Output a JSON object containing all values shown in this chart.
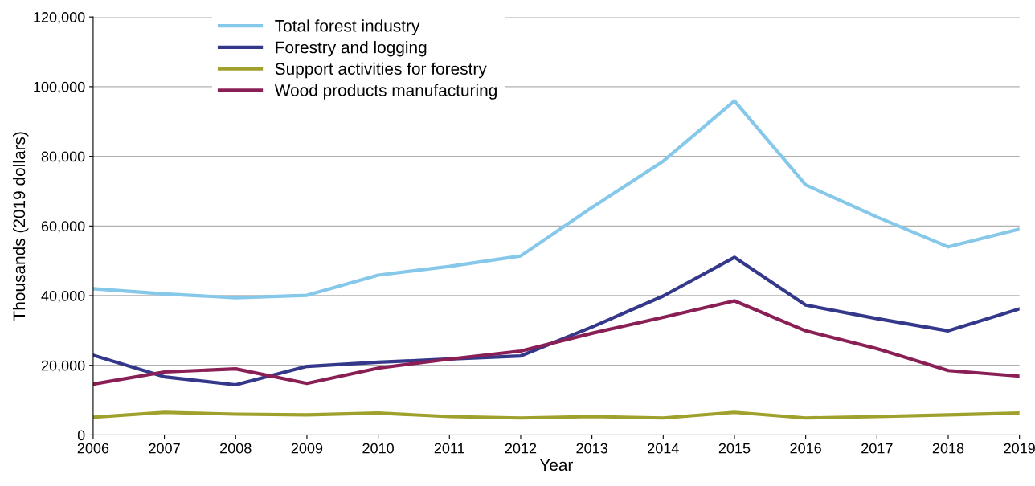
{
  "chart_data": {
    "type": "line",
    "xlabel": "Year",
    "ylabel": "Thousands (2019 dollars)",
    "x": [
      2006,
      2007,
      2008,
      2009,
      2010,
      2011,
      2012,
      2013,
      2014,
      2015,
      2016,
      2017,
      2018,
      2019
    ],
    "xlim": [
      2006,
      2019
    ],
    "xticks": [
      2006,
      2007,
      2008,
      2009,
      2010,
      2011,
      2012,
      2013,
      2014,
      2015,
      2016,
      2017,
      2018,
      2019
    ],
    "ylim": [
      0,
      120000
    ],
    "yticks": [
      {
        "value": 0,
        "label": "0"
      },
      {
        "value": 20000,
        "label": "20,000"
      },
      {
        "value": 40000,
        "label": "40,000"
      },
      {
        "value": 60000,
        "label": "60,000"
      },
      {
        "value": 80000,
        "label": "80,000"
      },
      {
        "value": 100000,
        "label": "100,000"
      },
      {
        "value": 120000,
        "label": "120,000"
      }
    ],
    "grid": "y",
    "legend": "top left",
    "marker": "none",
    "line_style": "solid",
    "series": [
      {
        "name": "Total forest industry",
        "color": "#86c8ea",
        "values": [
          42000,
          40500,
          39400,
          40100,
          45900,
          48400,
          51400,
          65300,
          78600,
          95900,
          71800,
          62600,
          54000,
          59100
        ]
      },
      {
        "name": "Forestry and logging",
        "color": "#34388a",
        "values": [
          22900,
          16700,
          14400,
          19700,
          20900,
          21800,
          22700,
          31000,
          39900,
          51000,
          37300,
          33400,
          29900,
          36200
        ]
      },
      {
        "name": "Support activities for forestry",
        "color": "#a0a02c",
        "values": [
          5100,
          6500,
          6000,
          5800,
          6300,
          5300,
          4900,
          5300,
          4900,
          6500,
          4900,
          5300,
          5800,
          6300
        ]
      },
      {
        "name": "Wood products manufacturing",
        "color": "#8a1f56",
        "values": [
          14600,
          18100,
          19000,
          14800,
          19200,
          21800,
          24100,
          29200,
          33800,
          38500,
          29900,
          24800,
          18500,
          16900
        ]
      }
    ]
  }
}
